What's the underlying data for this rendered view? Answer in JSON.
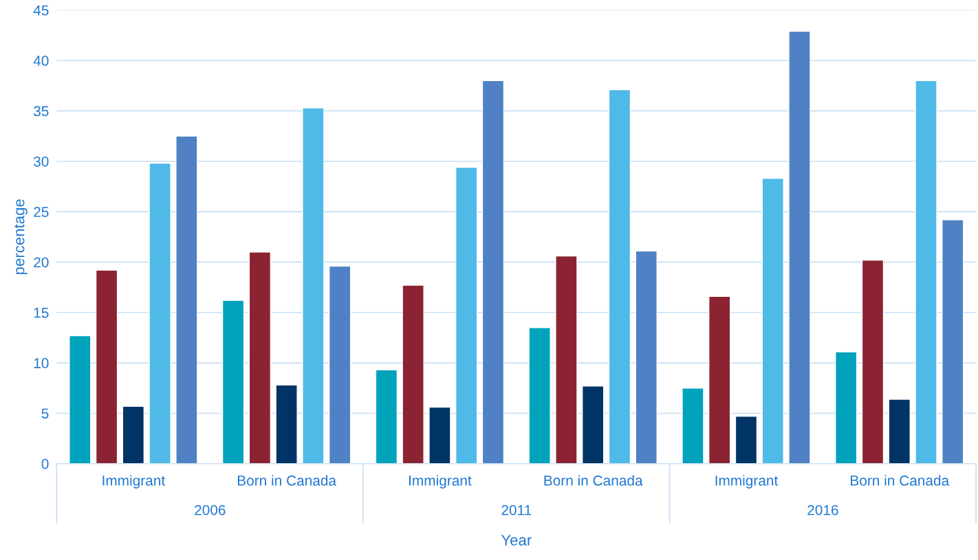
{
  "chart_data": {
    "type": "bar",
    "xlabel": "Year",
    "ylabel": "percentage",
    "categories": [
      "Immigrant",
      "Born in Canada",
      "Immigrant",
      "Born in Canada",
      "Immigrant",
      "Born in Canada"
    ],
    "annotations": [
      "2006",
      "2011",
      "2016"
    ],
    "series": [
      {
        "color": "#00a3bb",
        "values": [
          12.7,
          16.2,
          9.3,
          13.5,
          7.5,
          11.1
        ]
      },
      {
        "color": "#8b2332",
        "values": [
          19.2,
          21.0,
          17.7,
          20.6,
          16.6,
          20.2
        ]
      },
      {
        "color": "#003366",
        "values": [
          5.7,
          7.8,
          5.6,
          7.7,
          4.7,
          6.4
        ]
      },
      {
        "color": "#4fb9e8",
        "values": [
          29.8,
          35.3,
          29.4,
          37.1,
          28.3,
          38.0
        ]
      },
      {
        "color": "#4f81c4",
        "values": [
          32.5,
          19.6,
          38.0,
          21.1,
          42.9,
          24.2
        ]
      }
    ],
    "ylim": [
      0,
      45
    ],
    "yticks": [
      0,
      5,
      10,
      15,
      20,
      25,
      30,
      35,
      40,
      45
    ],
    "grid": "y",
    "legend": false
  }
}
